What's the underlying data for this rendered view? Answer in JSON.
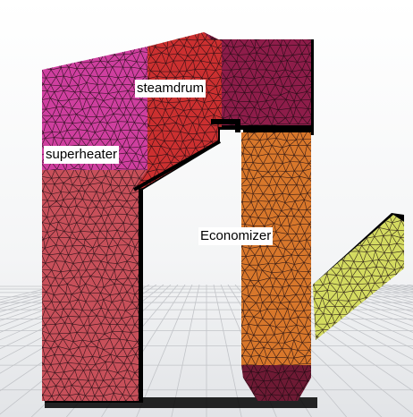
{
  "labels": {
    "steamdrum": "steamdrum",
    "superheater": "superheater",
    "economizer": "Economizer"
  },
  "regions": {
    "superheater": {
      "color": "#cf3f9f"
    },
    "steamdrum": {
      "color": "#cc3030"
    },
    "upper_right": {
      "color": "#8e1d4a"
    },
    "furnace": {
      "color": "#c8505a"
    },
    "economizer": {
      "color": "#d8772b"
    },
    "hopper": {
      "color": "#6e1a34"
    },
    "flue_duct": {
      "color": "#d4db60"
    }
  },
  "mesh_color": "#1a0a10",
  "background": {
    "top": "#ffffff",
    "floor": "#d8dadd",
    "grid": "#c2c4c8"
  }
}
